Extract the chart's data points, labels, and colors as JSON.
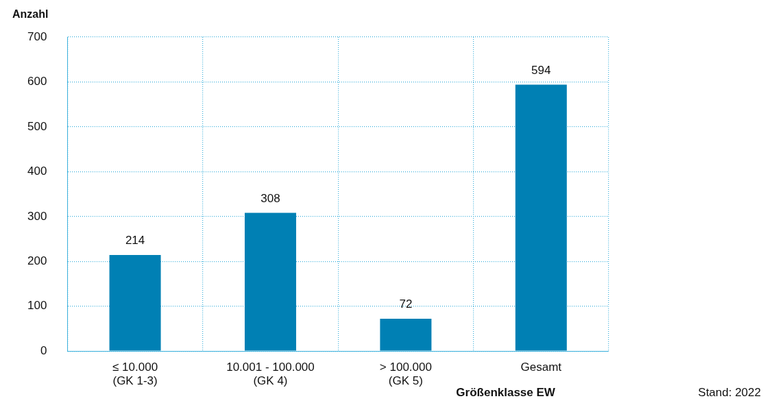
{
  "chart_data": {
    "type": "bar",
    "ylabel": "Anzahl",
    "xlabel": "Größenklasse EW",
    "categories": [
      "≤ 10.000\n(GK 1-3)",
      "10.001 - 100.000\n(GK 4)",
      "> 100.000\n(GK 5)",
      "Gesamt"
    ],
    "values": [
      214,
      308,
      72,
      594
    ],
    "color": "#0080b4",
    "ylim": [
      0,
      700
    ],
    "yticks": [
      0,
      100,
      200,
      300,
      400,
      500,
      600,
      700
    ],
    "grid": true,
    "data_labels": true,
    "legend": false,
    "annotations": [
      "Stand: 2022"
    ]
  }
}
